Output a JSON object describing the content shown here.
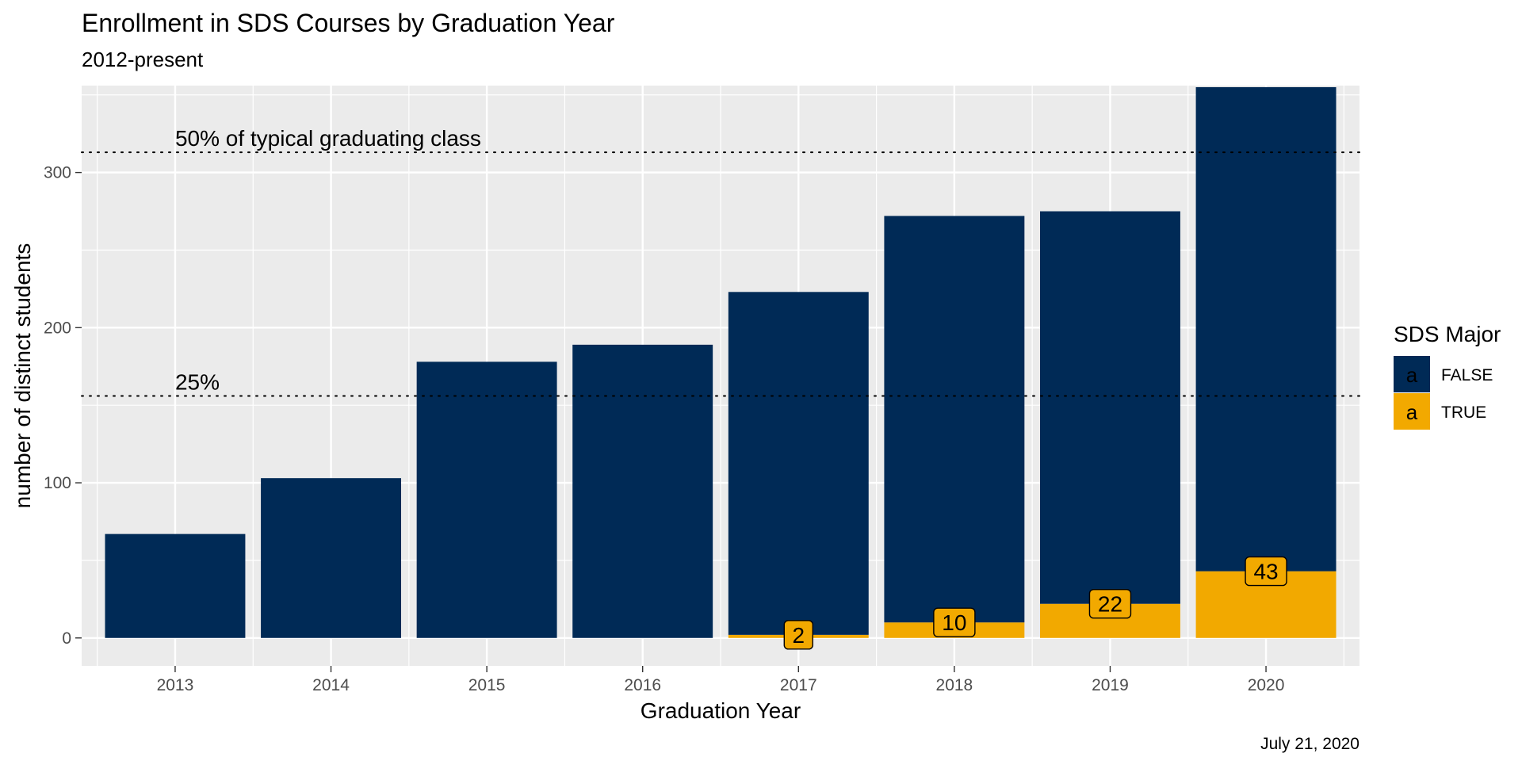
{
  "chart_data": {
    "type": "bar",
    "stacked": true,
    "title": "Enrollment in SDS Courses by Graduation Year",
    "subtitle": "2012-present",
    "xlabel": "Graduation Year",
    "ylabel": "number of distinct students",
    "caption": "July 21, 2020",
    "categories": [
      "2013",
      "2014",
      "2015",
      "2016",
      "2017",
      "2018",
      "2019",
      "2020"
    ],
    "series": [
      {
        "name": "FALSE",
        "color": "#002a56",
        "values": [
          67,
          103,
          178,
          189,
          221,
          262,
          253,
          312
        ]
      },
      {
        "name": "TRUE",
        "color": "#f2a900",
        "values": [
          0,
          0,
          0,
          0,
          2,
          10,
          22,
          43
        ]
      }
    ],
    "bar_labels": [
      {
        "category": "2017",
        "value": 2,
        "text": "2"
      },
      {
        "category": "2018",
        "value": 10,
        "text": "10"
      },
      {
        "category": "2019",
        "value": 22,
        "text": "22"
      },
      {
        "category": "2020",
        "value": 43,
        "text": "43"
      }
    ],
    "ylim": [
      -18,
      356
    ],
    "yticks": [
      0,
      100,
      200,
      300
    ],
    "reference_lines": [
      {
        "y": 313,
        "label": "50% of typical graduating class",
        "style": "dotted"
      },
      {
        "y": 156,
        "label": "25%",
        "style": "dotted"
      }
    ],
    "legend": {
      "title": "SDS Major",
      "position": "right",
      "key_glyph": "a",
      "entries": [
        {
          "label": "FALSE",
          "color": "#002a56"
        },
        {
          "label": "TRUE",
          "color": "#f2a900"
        }
      ]
    },
    "grid": true,
    "panel_background": "#ebebeb"
  }
}
